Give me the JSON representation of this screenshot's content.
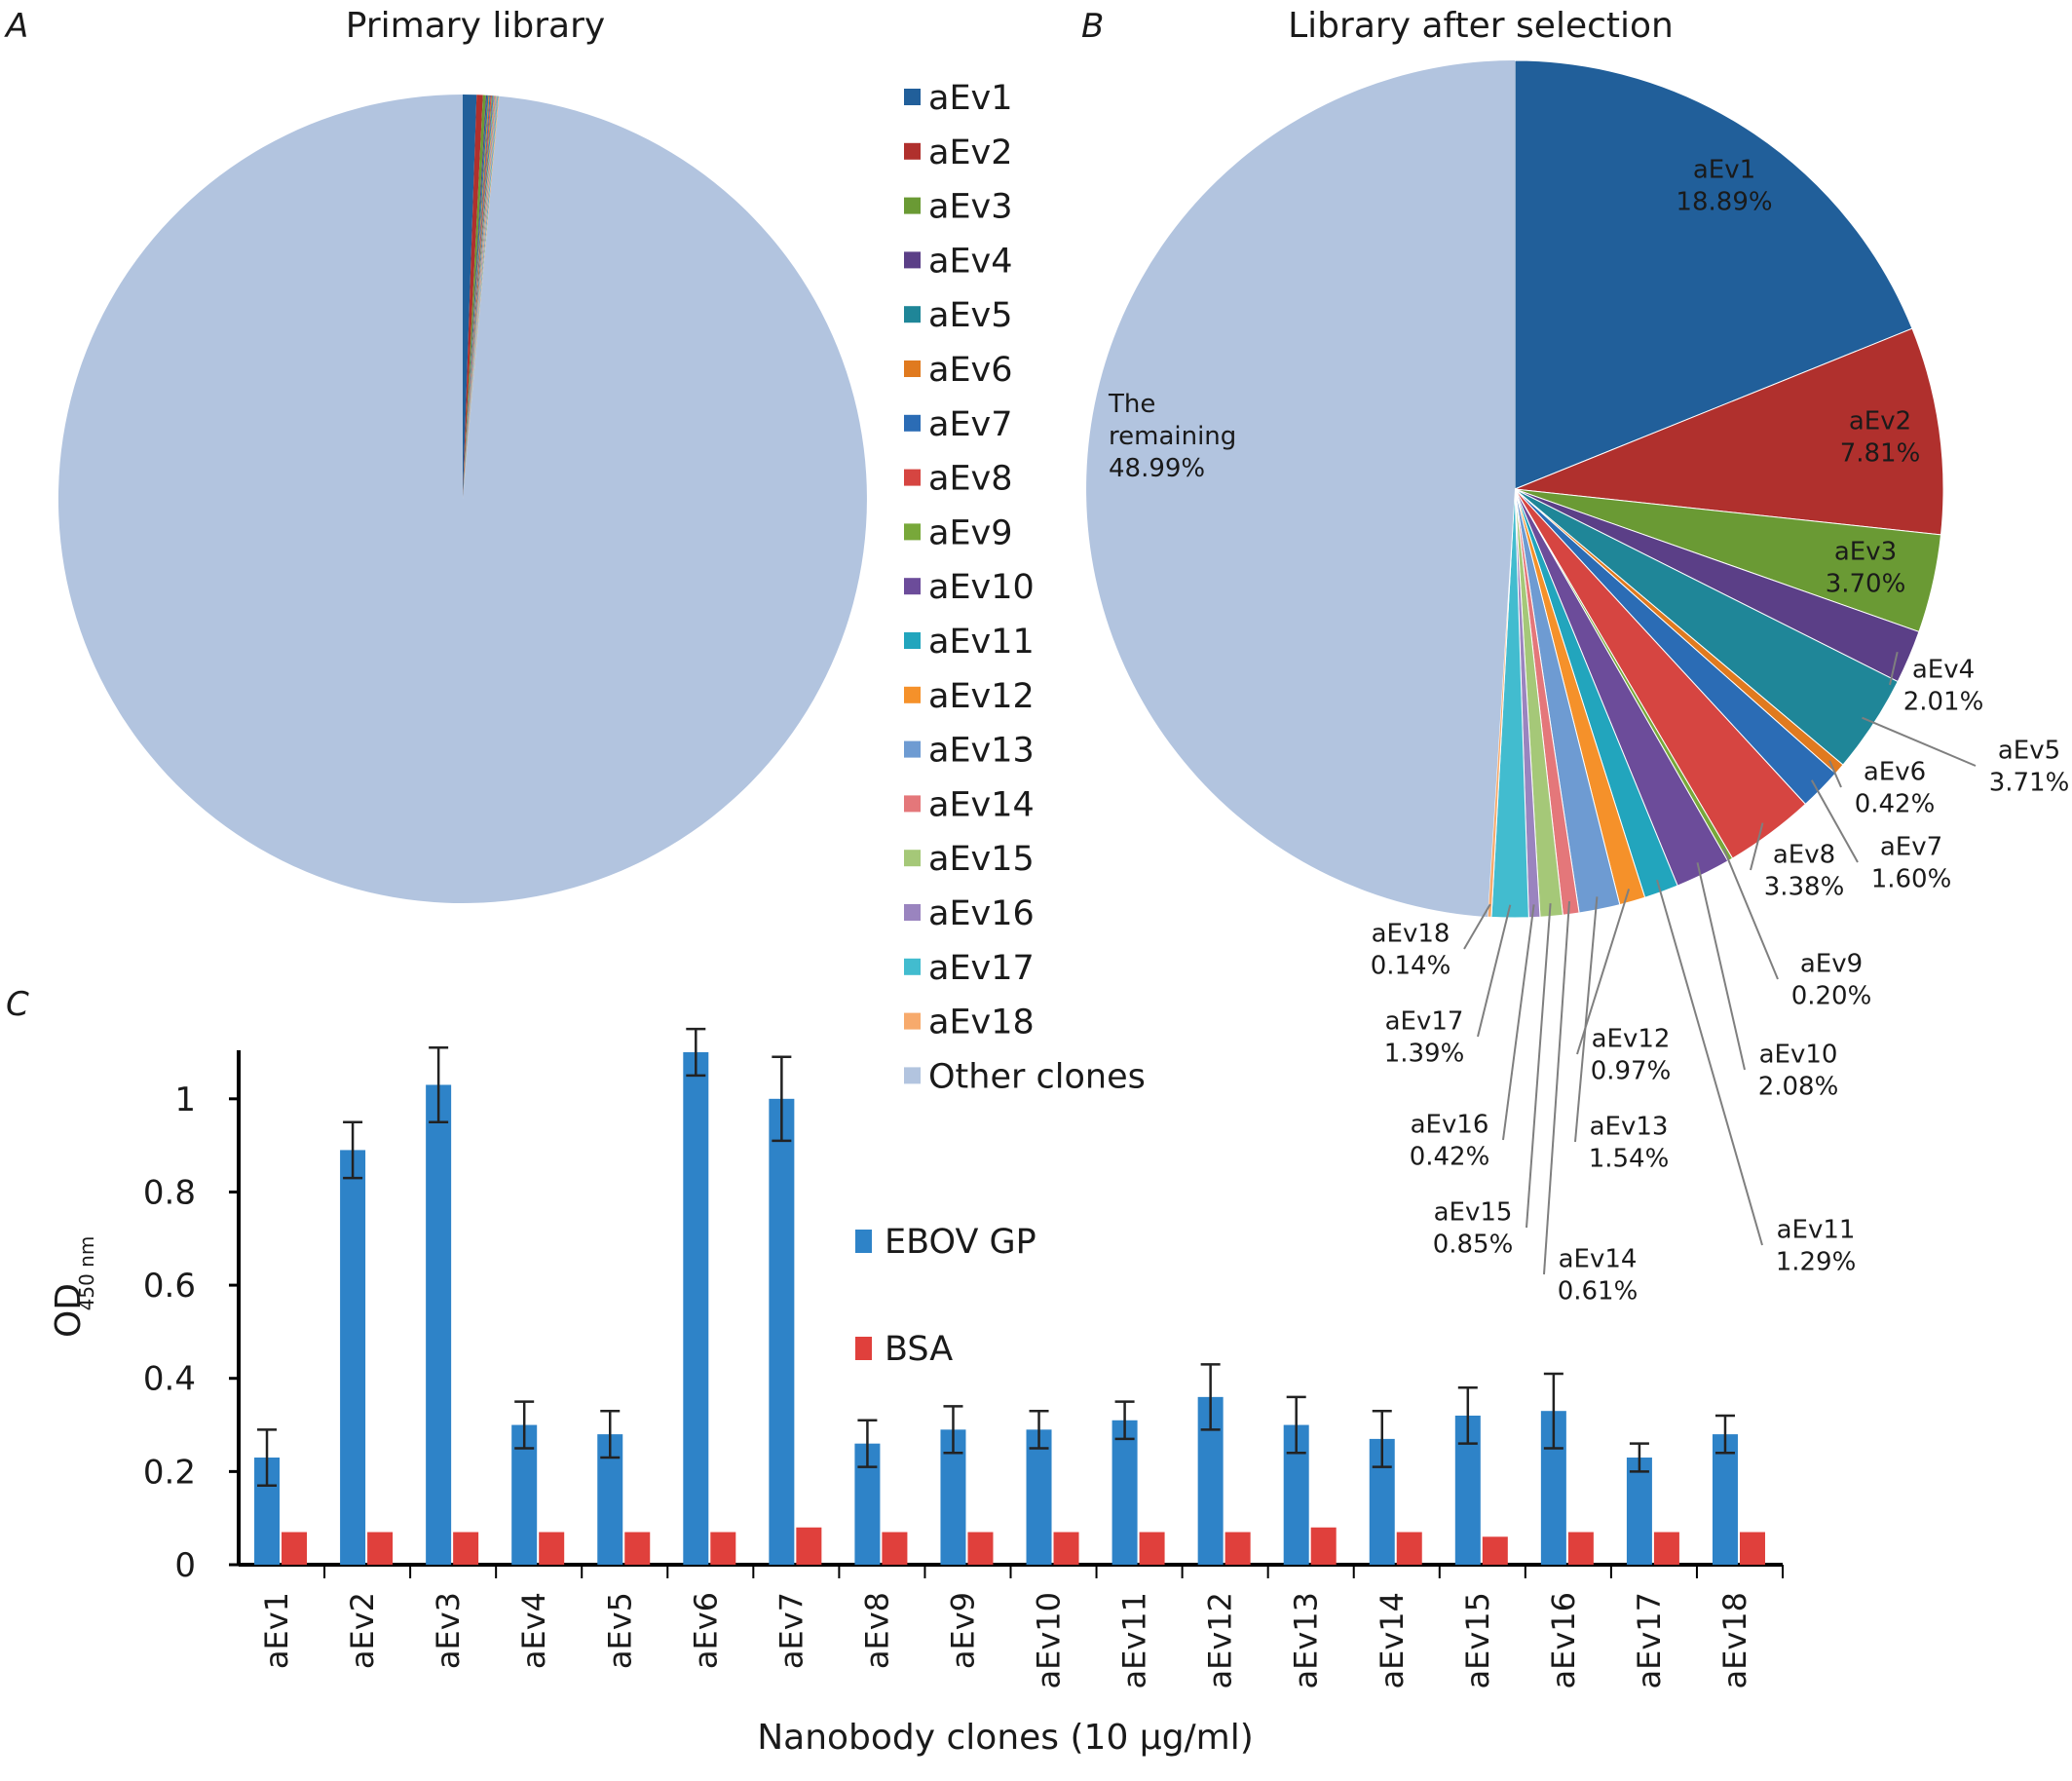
{
  "chart_data": [
    {
      "panel": "A",
      "type": "pie",
      "title": "Primary library",
      "slices": [
        {
          "label": "aEv1",
          "value": 0.55,
          "color": "#215f9a"
        },
        {
          "label": "aEv2",
          "value": 0.25,
          "color": "#b0302d"
        },
        {
          "label": "aEv3",
          "value": 0.12,
          "color": "#6a9a34"
        },
        {
          "label": "aEv4",
          "value": 0.05,
          "color": "#5b3f87"
        },
        {
          "label": "aEv5",
          "value": 0.05,
          "color": "#1f8698"
        },
        {
          "label": "aEv6",
          "value": 0.04,
          "color": "#e07a1f"
        },
        {
          "label": "aEv7",
          "value": 0.04,
          "color": "#2b6cb5"
        },
        {
          "label": "aEv8",
          "value": 0.04,
          "color": "#d64541"
        },
        {
          "label": "aEv9",
          "value": 0.03,
          "color": "#78a83a"
        },
        {
          "label": "aEv10",
          "value": 0.03,
          "color": "#6c4c9a"
        },
        {
          "label": "aEv11",
          "value": 0.03,
          "color": "#22a5bd"
        },
        {
          "label": "aEv12",
          "value": 0.03,
          "color": "#f5912a"
        },
        {
          "label": "aEv13",
          "value": 0.03,
          "color": "#6e9bd2"
        },
        {
          "label": "aEv14",
          "value": 0.03,
          "color": "#e4777a"
        },
        {
          "label": "aEv15",
          "value": 0.03,
          "color": "#a5c878"
        },
        {
          "label": "aEv16",
          "value": 0.03,
          "color": "#9a84bf"
        },
        {
          "label": "aEv17",
          "value": 0.03,
          "color": "#42bccf"
        },
        {
          "label": "aEv18",
          "value": 0.03,
          "color": "#f7aa6c"
        },
        {
          "label": "Other clones",
          "value": 98.93,
          "color": "#b2c4df"
        }
      ]
    },
    {
      "panel": "B",
      "type": "pie",
      "title": "Library after selection",
      "slices": [
        {
          "label": "aEv1",
          "value": 18.89,
          "pct": "18.89%"
        },
        {
          "label": "aEv2",
          "value": 7.81,
          "pct": "7.81%"
        },
        {
          "label": "aEv3",
          "value": 3.7,
          "pct": "3.70%"
        },
        {
          "label": "aEv4",
          "value": 2.01,
          "pct": "2.01%"
        },
        {
          "label": "aEv5",
          "value": 3.71,
          "pct": "3.71%"
        },
        {
          "label": "aEv6",
          "value": 0.42,
          "pct": "0.42%"
        },
        {
          "label": "aEv7",
          "value": 1.6,
          "pct": "1.60%"
        },
        {
          "label": "aEv8",
          "value": 3.38,
          "pct": "3.38%"
        },
        {
          "label": "aEv9",
          "value": 0.2,
          "pct": "0.20%"
        },
        {
          "label": "aEv10",
          "value": 2.08,
          "pct": "2.08%"
        },
        {
          "label": "aEv11",
          "value": 1.29,
          "pct": "1.29%"
        },
        {
          "label": "aEv12",
          "value": 0.97,
          "pct": "0.97%"
        },
        {
          "label": "aEv13",
          "value": 1.54,
          "pct": "1.54%"
        },
        {
          "label": "aEv14",
          "value": 0.61,
          "pct": "0.61%"
        },
        {
          "label": "aEv15",
          "value": 0.85,
          "pct": "0.85%"
        },
        {
          "label": "aEv16",
          "value": 0.42,
          "pct": "0.42%"
        },
        {
          "label": "aEv17",
          "value": 1.39,
          "pct": "1.39%"
        },
        {
          "label": "aEv18",
          "value": 0.14,
          "pct": "0.14%"
        },
        {
          "label": "The remaining",
          "value": 48.99,
          "pct": "48.99%"
        }
      ]
    },
    {
      "panel": "C",
      "type": "bar",
      "title": "",
      "xlabel": "Nanobody clones (10 µg/ml)",
      "ylabel_main": "OD",
      "ylabel_sub": "450 nm",
      "ylim": [
        0,
        1.1
      ],
      "yticks": [
        0,
        0.2,
        0.4,
        0.6,
        0.8,
        1
      ],
      "ytick_labels": [
        "0",
        "0.2",
        "0.4",
        "0.6",
        "0.8",
        "1"
      ],
      "categories": [
        "aEv1",
        "aEv2",
        "aEv3",
        "aEv4",
        "aEv5",
        "aEv6",
        "aEv7",
        "aEv8",
        "aEv9",
        "aEv10",
        "aEv11",
        "aEv12",
        "aEv13",
        "aEv14",
        "aEv15",
        "aEv16",
        "aEv17",
        "aEv18"
      ],
      "series": [
        {
          "name": "EBOV GP",
          "color": "#2e83c8",
          "values": [
            0.23,
            0.89,
            1.03,
            0.3,
            0.28,
            1.1,
            1.0,
            0.26,
            0.29,
            0.29,
            0.31,
            0.36,
            0.3,
            0.27,
            0.32,
            0.33,
            0.23,
            0.28
          ],
          "errors": [
            0.06,
            0.06,
            0.08,
            0.05,
            0.05,
            0.05,
            0.09,
            0.05,
            0.05,
            0.04,
            0.04,
            0.07,
            0.06,
            0.06,
            0.06,
            0.08,
            0.03,
            0.04
          ]
        },
        {
          "name": "BSA",
          "color": "#e0403c",
          "values": [
            0.07,
            0.07,
            0.07,
            0.07,
            0.07,
            0.07,
            0.08,
            0.07,
            0.07,
            0.07,
            0.07,
            0.07,
            0.08,
            0.07,
            0.06,
            0.07,
            0.07,
            0.07
          ]
        }
      ],
      "legend_position": "center-right"
    }
  ],
  "labels": {
    "panel_a": "A",
    "panel_b": "B",
    "panel_c": "C"
  },
  "colors": {
    "other": "#b2c4df",
    "leader_line": "#7f7f7f"
  }
}
